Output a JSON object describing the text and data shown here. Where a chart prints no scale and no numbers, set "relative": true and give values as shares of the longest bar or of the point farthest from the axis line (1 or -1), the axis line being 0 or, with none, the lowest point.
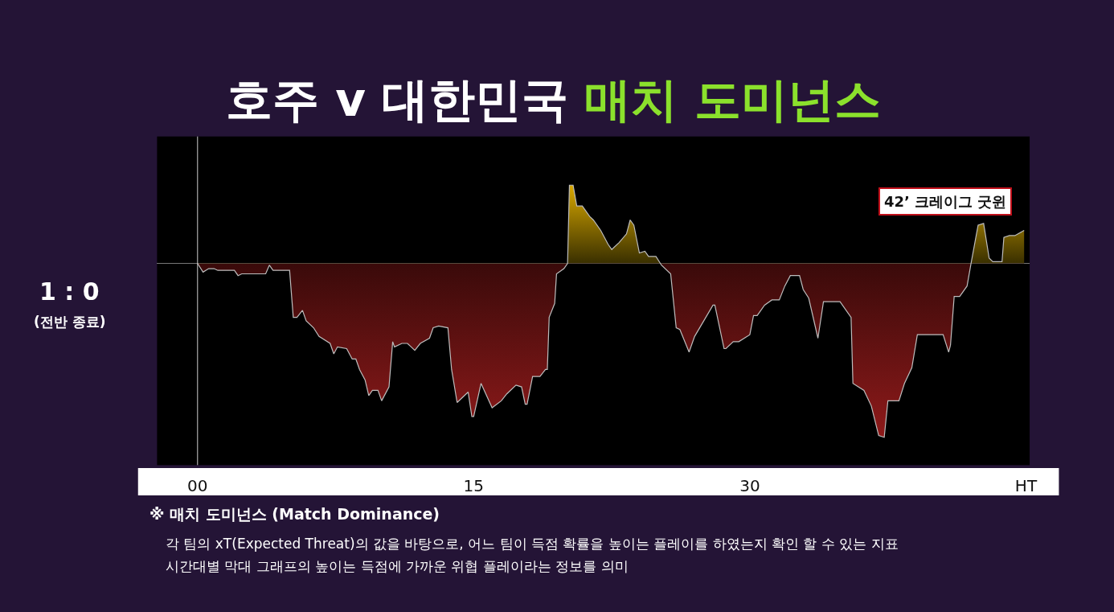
{
  "chart_data": {
    "type": "area",
    "title": "호주 v 대한민국 매치 도미넌스",
    "relative": true,
    "x": [
      0,
      0.3,
      0.6,
      0.9,
      1.1,
      2.0,
      2.2,
      2.4,
      3.7,
      3.9,
      4.1,
      5.0,
      5.2,
      5.4,
      5.7,
      5.9,
      6.3,
      6.6,
      7.2,
      7.4,
      7.6,
      8.1,
      8.4,
      8.6,
      8.8,
      9.1,
      9.3,
      9.5,
      9.8,
      10.0,
      10.4,
      10.6,
      10.7,
      11.1,
      11.4,
      11.8,
      12.1,
      12.6,
      12.8,
      13.1,
      13.6,
      13.8,
      14.1,
      14.7,
      14.9,
      15.0,
      15.4,
      16.0,
      16.5,
      16.8,
      17.3,
      17.6,
      17.8,
      17.9,
      18.2,
      18.6,
      18.9,
      19.0,
      19.1,
      19.4,
      19.5,
      19.9,
      20.1,
      20.2,
      20.4,
      20.6,
      20.9,
      21.1,
      21.3,
      21.5,
      21.9,
      22.3,
      22.5,
      22.9,
      23.3,
      23.5,
      23.7,
      24.0,
      24.3,
      24.5,
      24.9,
      25.2,
      25.7,
      26.0,
      26.2,
      26.7,
      27.0,
      27.5,
      28.0,
      28.1,
      28.6,
      28.7,
      29.1,
      29.4,
      30.0,
      30.2,
      30.4,
      30.8,
      31.2,
      31.6,
      31.9,
      32.2,
      32.7,
      32.9,
      33.2,
      33.7,
      34.0,
      34.9,
      35.5,
      35.6,
      36.2,
      36.6,
      37.0,
      37.3,
      37.5,
      38.1,
      38.4,
      38.8,
      39.1,
      40.5,
      40.8,
      40.9,
      41.1,
      41.4,
      41.8,
      42.0,
      42.4,
      42.7,
      43.0,
      43.2,
      43.7,
      43.8,
      44.1,
      44.4,
      44.9
    ],
    "series": [
      {
        "color": "#8e1a1a",
        "values": [
          0,
          -0.05,
          -0.03,
          -0.03,
          -0.04,
          -0.04,
          -0.07,
          -0.06,
          -0.06,
          -0.01,
          -0.04,
          -0.04,
          -0.31,
          -0.31,
          -0.27,
          -0.33,
          -0.37,
          -0.42,
          -0.46,
          -0.52,
          -0.48,
          -0.49,
          -0.55,
          -0.55,
          -0.61,
          -0.67,
          -0.76,
          -0.73,
          -0.73,
          -0.79,
          -0.71,
          -0.45,
          -0.48,
          -0.46,
          -0.46,
          -0.5,
          -0.46,
          -0.43,
          -0.37,
          -0.36,
          -0.37,
          -0.61,
          -0.8,
          -0.74,
          -0.88,
          -0.88,
          -0.69,
          -0.83,
          -0.79,
          -0.75,
          -0.7,
          -0.71,
          -0.81,
          -0.81,
          -0.65,
          -0.65,
          -0.61,
          -0.61,
          -0.31,
          -0.23,
          -0.06,
          -0.03,
          0,
          0.45,
          0.45,
          0.33,
          0.33,
          0.3,
          0.27,
          0.25,
          0.19,
          0.11,
          0.08,
          0.12,
          0.17,
          0.25,
          0.22,
          0.06,
          0.07,
          0.04,
          0.04,
          -0.01,
          -0.06,
          -0.37,
          -0.38,
          -0.51,
          -0.42,
          -0.33,
          -0.24,
          -0.24,
          -0.49,
          -0.49,
          -0.45,
          -0.45,
          -0.41,
          -0.3,
          -0.3,
          -0.24,
          -0.21,
          -0.21,
          -0.13,
          -0.07,
          -0.07,
          -0.15,
          -0.2,
          -0.43,
          -0.22,
          -0.22,
          -0.31,
          -0.69,
          -0.73,
          -0.82,
          -0.99,
          -1,
          -0.79,
          -0.79,
          -0.69,
          -0.6,
          -0.41,
          -0.41,
          -0.51,
          -0.47,
          -0.19,
          -0.19,
          -0.13,
          -0.01,
          0.22,
          0.23,
          0.03,
          0.01,
          0.01,
          0.15,
          0.16,
          0.16,
          0.19
        ]
      }
    ],
    "xlim": [
      -2.2,
      45.2
    ],
    "xticks": [
      {
        "value": 0,
        "label": "00"
      },
      15,
      30,
      {
        "value": 45,
        "label": "HT"
      }
    ],
    "grid": false,
    "ref_lines": [
      {
        "axis": "x",
        "value": 0,
        "color": "#cccccc"
      }
    ],
    "annotations": [
      "42’ 크레이그 굿윈",
      "1 : 0",
      "(전반 종료)",
      "※ 매치 도미넌스 (Match Dominance)",
      "각 팀의 xT(Expected Threat)의 값을 바탕으로, 어느 팀이 득점 확률을 높이는 플레이를 하였는지 확인 할 수 있는 지표",
      "시간대별 막대 그래프의 높이는 득점에 가까운 위협 플레이라는 정보를 의미"
    ]
  }
}
